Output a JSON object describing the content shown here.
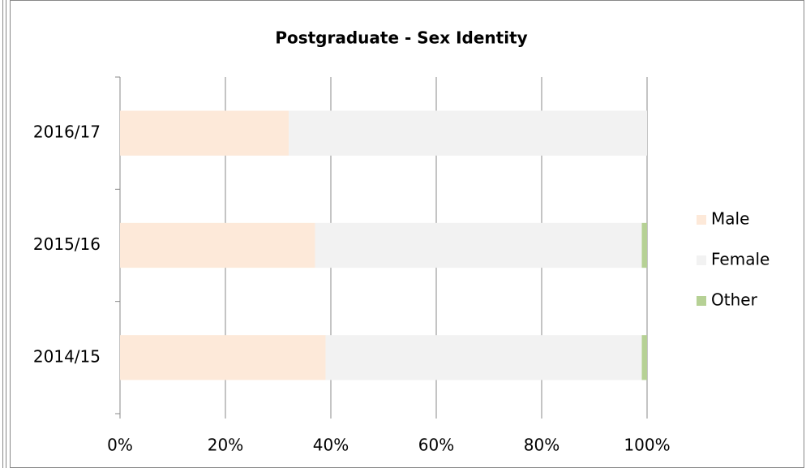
{
  "chart_data": {
    "type": "stacked_bar_horizontal",
    "title": "Postgraduate - Sex Identity",
    "categories": [
      "2014/15",
      "2015/16",
      "2016/17"
    ],
    "series": [
      {
        "name": "Male",
        "color": "#fde9d9",
        "values": [
          39,
          37,
          32
        ]
      },
      {
        "name": "Female",
        "color": "#f2f2f2",
        "values": [
          60,
          62,
          68
        ]
      },
      {
        "name": "Other",
        "color": "#b6d195",
        "values": [
          1,
          1,
          0
        ]
      }
    ],
    "xlim": [
      0,
      100
    ],
    "xticks": [
      {
        "value": 0,
        "label": "0%"
      },
      {
        "value": 20,
        "label": "20%"
      },
      {
        "value": 40,
        "label": "40%"
      },
      {
        "value": 60,
        "label": "60%"
      },
      {
        "value": 80,
        "label": "80%"
      },
      {
        "value": 100,
        "label": "100%"
      }
    ],
    "grid": true,
    "legend": "right"
  }
}
